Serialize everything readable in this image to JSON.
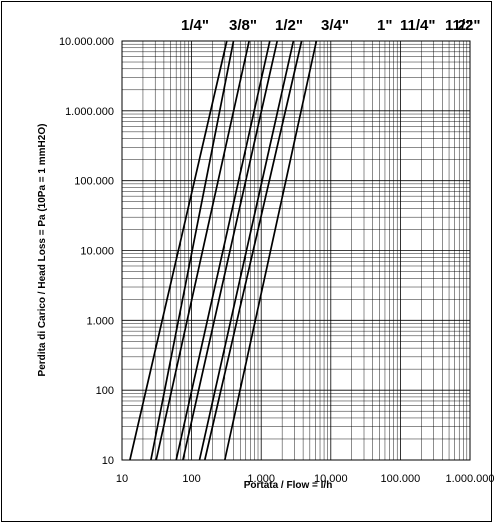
{
  "chart_data": {
    "type": "line",
    "title": "",
    "xlabel": "Portata / Flow = l/h",
    "ylabel": "Perdita di Carico / Head Loss = Pa (10Pa = 1 mmH2O)",
    "x_scale": "log",
    "y_scale": "log",
    "xlim": [
      10,
      1000000
    ],
    "ylim": [
      10,
      10000000
    ],
    "x_tick_labels": [
      "10",
      "100",
      "1.000",
      "10.000",
      "100.000",
      "1.000.000"
    ],
    "y_tick_labels": [
      "10",
      "100",
      "1.000",
      "10.000",
      "100.000",
      "1.000.000",
      "10.000.000"
    ],
    "grid": true,
    "legend_labels": [
      "1/4\"",
      "3/8\"",
      "1/2\"",
      "3/4\"",
      "1\"",
      "11/4\"",
      "11/2\"",
      "2\""
    ],
    "series": [
      {
        "name": "1/4\"",
        "x": [
          13,
          320
        ],
        "y": [
          10,
          10000000
        ]
      },
      {
        "name": "3/8\"",
        "x": [
          26,
          400
        ],
        "y": [
          10,
          10000000
        ]
      },
      {
        "name": "1/2\"",
        "x": [
          31,
          670
        ],
        "y": [
          10,
          10000000
        ]
      },
      {
        "name": "3/4\"",
        "x": [
          60,
          1330
        ],
        "y": [
          10,
          10000000
        ]
      },
      {
        "name": "1\"",
        "x": [
          75,
          1700
        ],
        "y": [
          10,
          10000000
        ]
      },
      {
        "name": "11/4\"",
        "x": [
          130,
          2900
        ],
        "y": [
          10,
          10000000
        ]
      },
      {
        "name": "11/2\"",
        "x": [
          155,
          3800
        ],
        "y": [
          10,
          10000000
        ]
      },
      {
        "name": "2\"",
        "x": [
          300,
          6200
        ],
        "y": [
          10,
          10000000
        ]
      }
    ]
  }
}
